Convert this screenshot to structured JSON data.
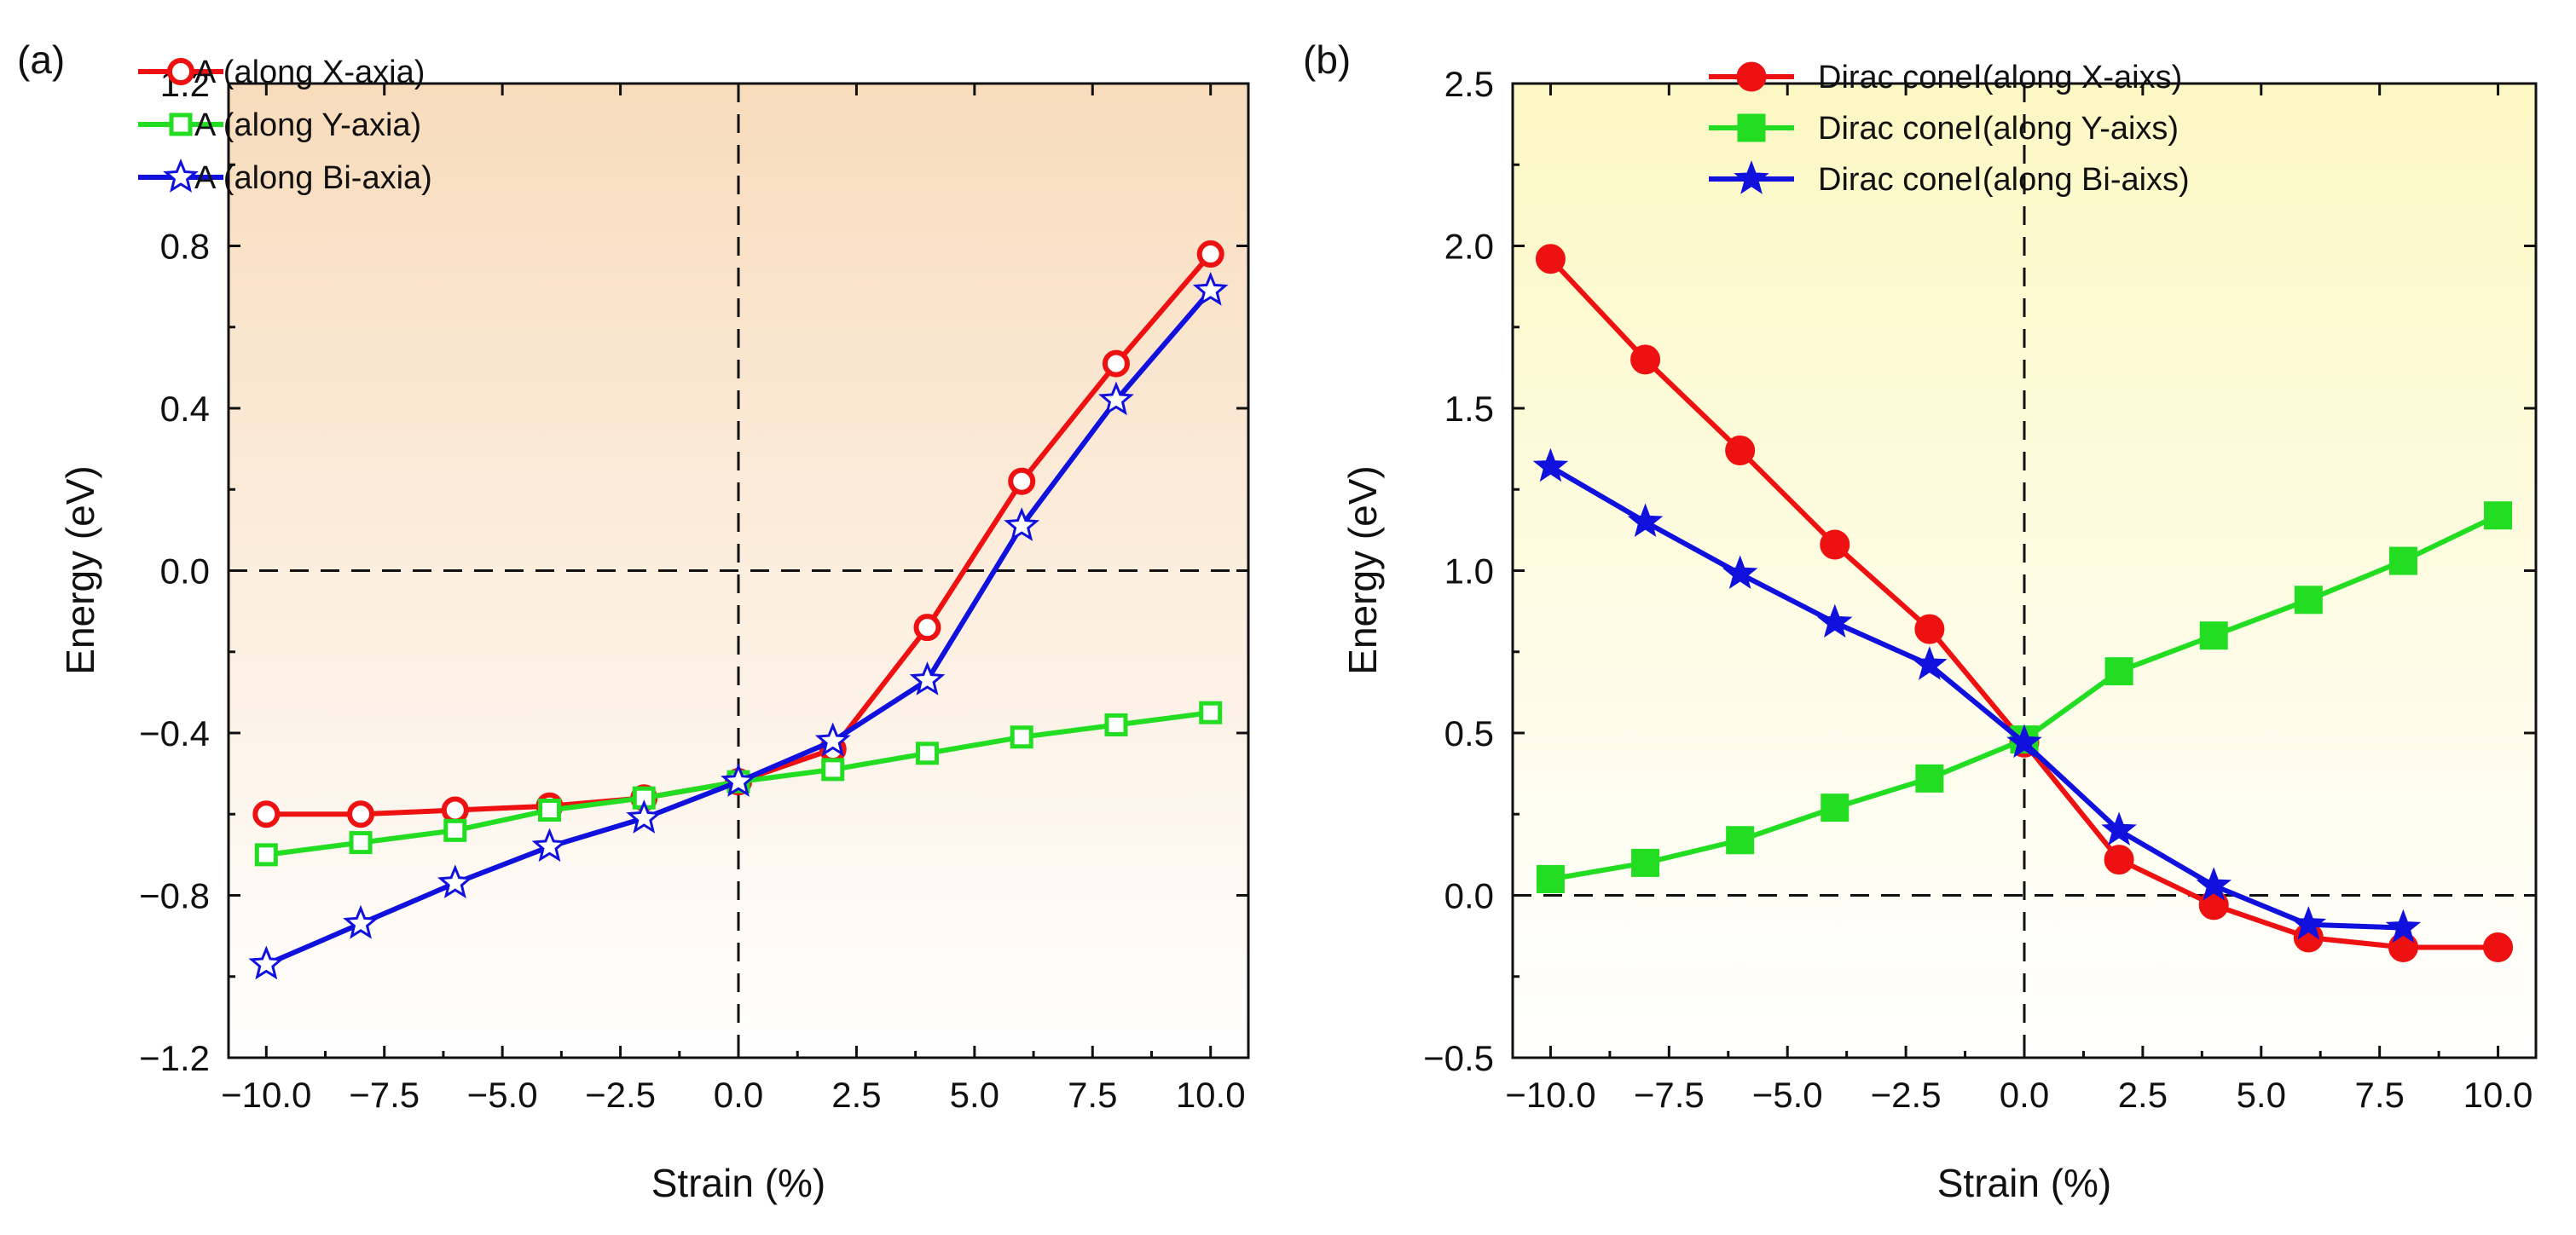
{
  "chart_data": [
    {
      "panel_label": "(a)",
      "type": "line",
      "xlabel": "Strain (%)",
      "ylabel": "Energy (eV)",
      "xlim": [
        -10.8,
        10.8
      ],
      "ylim": [
        -1.2,
        1.2
      ],
      "xticks": [
        -10,
        -7.5,
        -5,
        -2.5,
        0,
        2.5,
        5,
        7.5,
        10
      ],
      "xtick_labels": [
        "−10.0",
        "−7.5",
        "−5.0",
        "−2.5",
        "0.0",
        "2.5",
        "5.0",
        "7.5",
        "10.0"
      ],
      "yticks": [
        -1.2,
        -0.8,
        -0.4,
        0.0,
        0.4,
        0.8,
        1.2
      ],
      "ytick_labels": [
        "−1.2",
        "−0.8",
        "−0.4",
        "0.0",
        "0.4",
        "0.8",
        "1.2"
      ],
      "reference_lines": {
        "x": 0,
        "y": 0
      },
      "legend_position": "top-left",
      "background_gradient": [
        "#f8dcbc",
        "#ffffff"
      ],
      "x": [
        -10,
        -8,
        -6,
        -4,
        -2,
        0,
        2,
        4,
        6,
        8,
        10
      ],
      "series": [
        {
          "name": "A (along X-axia)",
          "color": "#ee1111",
          "marker": "open-circle",
          "values": [
            -0.6,
            -0.6,
            -0.59,
            -0.58,
            -0.56,
            -0.52,
            -0.44,
            -0.14,
            0.22,
            0.51,
            0.78
          ]
        },
        {
          "name": "A (along Y-axia)",
          "color": "#22dd22",
          "marker": "open-square",
          "values": [
            -0.7,
            -0.67,
            -0.64,
            -0.59,
            -0.56,
            -0.52,
            -0.49,
            -0.45,
            -0.41,
            -0.38,
            -0.35
          ]
        },
        {
          "name": "A (along Bi-axia)",
          "color": "#1111dd",
          "marker": "open-star",
          "values": [
            -0.97,
            -0.87,
            -0.77,
            -0.68,
            -0.61,
            -0.52,
            -0.42,
            -0.27,
            0.11,
            0.42,
            0.69
          ]
        }
      ]
    },
    {
      "panel_label": "(b)",
      "type": "line",
      "xlabel": "Strain (%)",
      "ylabel": "Energy (eV)",
      "xlim": [
        -10.8,
        10.8
      ],
      "ylim": [
        -0.5,
        2.5
      ],
      "xticks": [
        -10,
        -7.5,
        -5,
        -2.5,
        0,
        2.5,
        5,
        7.5,
        10
      ],
      "xtick_labels": [
        "−10.0",
        "−7.5",
        "−5.0",
        "−2.5",
        "0.0",
        "2.5",
        "5.0",
        "7.5",
        "10.0"
      ],
      "yticks": [
        -0.5,
        0.0,
        0.5,
        1.0,
        1.5,
        2.0,
        2.5
      ],
      "ytick_labels": [
        "−0.5",
        "0.0",
        "0.5",
        "1.0",
        "1.5",
        "2.0",
        "2.5"
      ],
      "reference_lines": {
        "x": 0,
        "y": 0
      },
      "legend_position": "top-center",
      "background_gradient": [
        "#fcf8c4",
        "#ffffff"
      ],
      "series": [
        {
          "name": "Dirac coneⅠ(along X-aixs)",
          "color": "#ee1111",
          "marker": "filled-circle",
          "x": [
            -10,
            -8,
            -6,
            -4,
            -2,
            0,
            2,
            4,
            6,
            8,
            10
          ],
          "values": [
            1.96,
            1.65,
            1.37,
            1.08,
            0.82,
            0.47,
            0.11,
            -0.03,
            -0.13,
            -0.16,
            -0.16
          ]
        },
        {
          "name": "Dirac coneⅠ(along Y-aixs)",
          "color": "#22dd22",
          "marker": "filled-square",
          "x": [
            -10,
            -8,
            -6,
            -4,
            -2,
            0,
            2,
            4,
            6,
            8,
            10
          ],
          "values": [
            0.05,
            0.1,
            0.17,
            0.27,
            0.36,
            0.48,
            0.69,
            0.8,
            0.91,
            1.03,
            1.17
          ]
        },
        {
          "name": "Dirac coneⅠ(along Bi-aixs)",
          "color": "#1111dd",
          "marker": "filled-star",
          "x": [
            -10,
            -8,
            -6,
            -4,
            -2,
            0,
            2,
            4,
            6,
            8
          ],
          "values": [
            1.32,
            1.15,
            0.99,
            0.84,
            0.71,
            0.47,
            0.2,
            0.03,
            -0.09,
            -0.1
          ]
        }
      ]
    }
  ]
}
